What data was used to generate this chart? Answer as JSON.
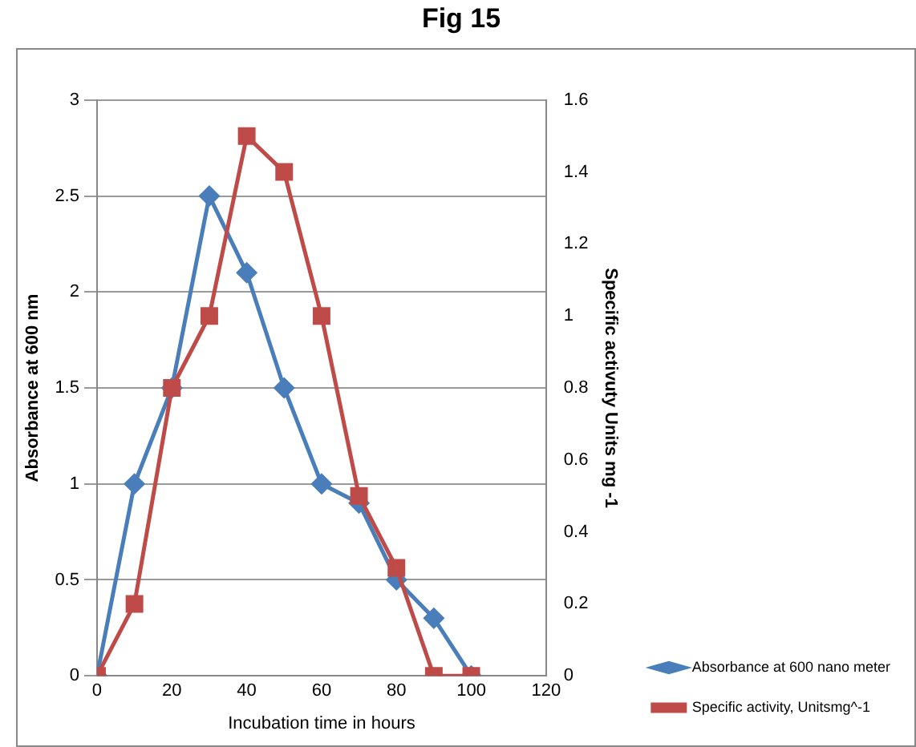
{
  "chart_data": {
    "type": "line",
    "title": "Fig 15",
    "xlabel": "Incubation time in hours",
    "ylabel": "Absorbance at 600 nm",
    "y2label": "Specific activuty Units mg -1",
    "x": [
      0,
      10,
      20,
      30,
      40,
      50,
      60,
      70,
      80,
      90,
      100
    ],
    "series": [
      {
        "name": "Absorbance at 600 nano meter",
        "color": "#4a7ebb",
        "marker": "diamond",
        "values": [
          0,
          1,
          1.5,
          2.5,
          2.1,
          1.5,
          1,
          0.9,
          0.5,
          0.3,
          0
        ]
      },
      {
        "name": "Specific activity, Unitsmg^-1",
        "color": "#be4b48",
        "marker": "square",
        "axis": "y2",
        "values": [
          0,
          0.2,
          0.8,
          1.0,
          1.5,
          1.4,
          1.0,
          0.5,
          0.3,
          0,
          0
        ]
      }
    ],
    "xlim": [
      0,
      120
    ],
    "xticks": [
      0,
      20,
      40,
      60,
      80,
      100,
      120
    ],
    "ylim": [
      0,
      3
    ],
    "yticks": [
      0,
      0.5,
      1,
      1.5,
      2,
      2.5,
      3
    ],
    "y2lim": [
      0,
      1.6
    ],
    "y2ticks": [
      0,
      0.2,
      0.4,
      0.6,
      0.8,
      1,
      1.2,
      1.4,
      1.6
    ],
    "grid": "y",
    "legend": "bottom right"
  }
}
